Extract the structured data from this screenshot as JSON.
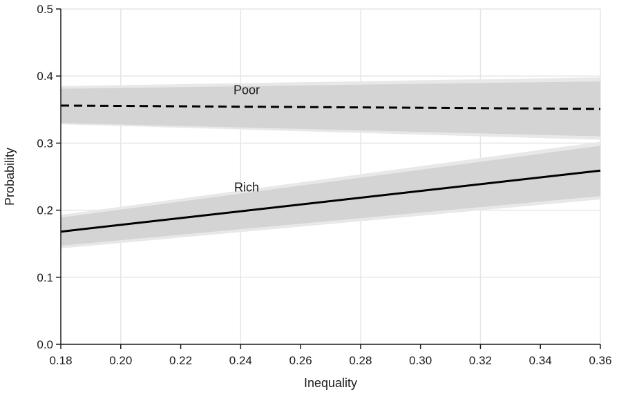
{
  "chart_data": {
    "type": "line",
    "title": "",
    "xlabel": "Inequality",
    "ylabel": "Probability",
    "xlim": [
      0.18,
      0.36
    ],
    "ylim": [
      0.0,
      0.5
    ],
    "grid": true,
    "x_ticks": [
      "0.18",
      "0.20",
      "0.22",
      "0.24",
      "0.26",
      "0.28",
      "0.30",
      "0.32",
      "0.34",
      "0.36"
    ],
    "y_ticks": [
      "0.0",
      "0.1",
      "0.2",
      "0.3",
      "0.4",
      "0.5"
    ],
    "series": [
      {
        "name": "Poor",
        "style": "dashed",
        "x": [
          0.18,
          0.36
        ],
        "y": [
          0.356,
          0.351
        ],
        "ci_outer_lower": [
          0.328,
          0.305
        ],
        "ci_outer_upper": [
          0.385,
          0.398
        ],
        "ci_inner_lower": [
          0.33,
          0.31
        ],
        "ci_inner_upper": [
          0.381,
          0.392
        ],
        "label_at": [
          0.242,
          0.373
        ]
      },
      {
        "name": "Rich",
        "style": "solid",
        "x": [
          0.18,
          0.36
        ],
        "y": [
          0.168,
          0.259
        ],
        "ci_outer_lower": [
          0.143,
          0.216
        ],
        "ci_outer_upper": [
          0.193,
          0.302
        ],
        "ci_inner_lower": [
          0.147,
          0.221
        ],
        "ci_inner_upper": [
          0.189,
          0.296
        ],
        "label_at": [
          0.242,
          0.228
        ]
      }
    ],
    "colors": {
      "band_outer": "#e8e8e8",
      "band_inner": "#d4d4d4",
      "line": "#000000",
      "grid": "#e6e6e6",
      "axis": "#1a1a1a"
    }
  }
}
